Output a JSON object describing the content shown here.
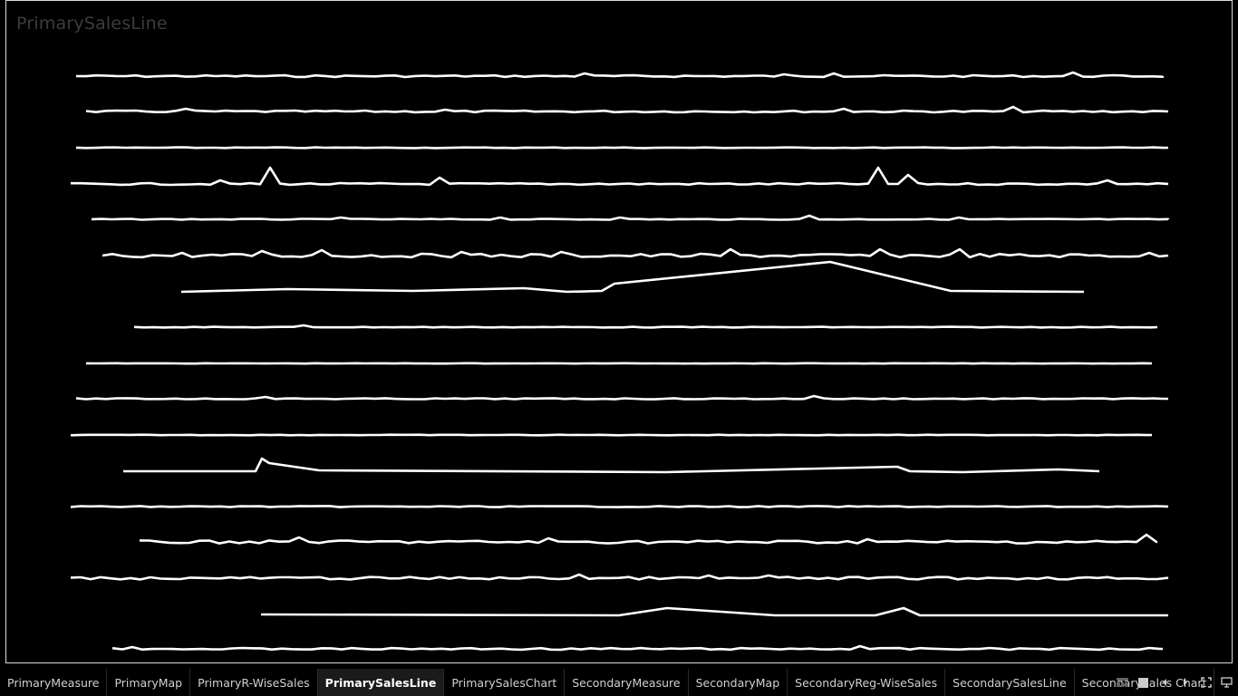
{
  "sheet": {
    "title": "PrimarySalesLine"
  },
  "tabs": [
    {
      "label": "PrimaryMeasure",
      "active": false
    },
    {
      "label": "PrimaryMap",
      "active": false
    },
    {
      "label": "PrimaryR-WiseSales",
      "active": false
    },
    {
      "label": "PrimarySalesLine",
      "active": true
    },
    {
      "label": "PrimarySalesChart",
      "active": false
    },
    {
      "label": "SecondaryMeasure",
      "active": false
    },
    {
      "label": "SecondaryMap",
      "active": false
    },
    {
      "label": "SecondaryReg-WiseSales",
      "active": false
    },
    {
      "label": "SecondarySalesLine",
      "active": false
    },
    {
      "label": "SecondarySales Chart",
      "active": false
    }
  ],
  "controls": [
    {
      "icon": "filmstrip-view-icon"
    },
    {
      "icon": "grid-view-icon"
    },
    {
      "icon": "previous-sheet-icon"
    },
    {
      "icon": "next-sheet-icon"
    },
    {
      "icon": "fullscreen-icon"
    },
    {
      "icon": "presentation-mode-icon"
    }
  ],
  "chart_data": {
    "type": "line",
    "title": "PrimarySalesLine",
    "xlabel": "",
    "ylabel": "",
    "grid": false,
    "line_color": "#ffffff",
    "background": "#000000",
    "series_count": 17
  }
}
